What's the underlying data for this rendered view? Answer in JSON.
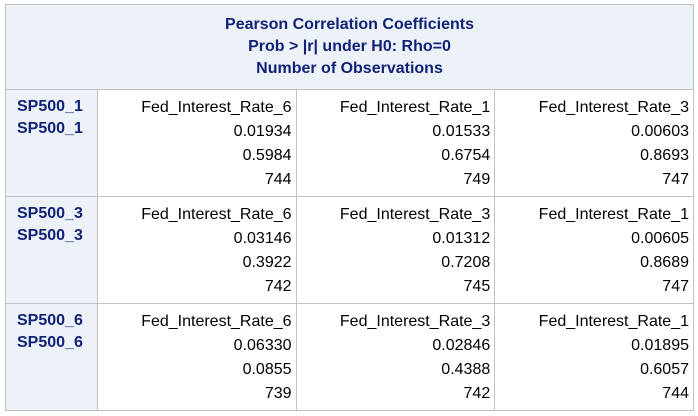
{
  "header": {
    "line1": "Pearson Correlation Coefficients",
    "line2": "Prob > |r| under H0: Rho=0",
    "line3": "Number of Observations"
  },
  "rows": [
    {
      "label1": "SP500_1",
      "label2": "SP500_1",
      "cells": [
        {
          "name": "Fed_Interest_Rate_6",
          "corr": "0.01934",
          "p": "0.5984",
          "n": "744"
        },
        {
          "name": "Fed_Interest_Rate_1",
          "corr": "0.01533",
          "p": "0.6754",
          "n": "749"
        },
        {
          "name": "Fed_Interest_Rate_3",
          "corr": "0.00603",
          "p": "0.8693",
          "n": "747"
        }
      ]
    },
    {
      "label1": "SP500_3",
      "label2": "SP500_3",
      "cells": [
        {
          "name": "Fed_Interest_Rate_6",
          "corr": "0.03146",
          "p": "0.3922",
          "n": "742"
        },
        {
          "name": "Fed_Interest_Rate_3",
          "corr": "0.01312",
          "p": "0.7208",
          "n": "745"
        },
        {
          "name": "Fed_Interest_Rate_1",
          "corr": "0.00605",
          "p": "0.8689",
          "n": "747"
        }
      ]
    },
    {
      "label1": "SP500_6",
      "label2": "SP500_6",
      "cells": [
        {
          "name": "Fed_Interest_Rate_6",
          "corr": "0.06330",
          "p": "0.0855",
          "n": "739"
        },
        {
          "name": "Fed_Interest_Rate_3",
          "corr": "0.02846",
          "p": "0.4388",
          "n": "742"
        },
        {
          "name": "Fed_Interest_Rate_1",
          "corr": "0.01895",
          "p": "0.6057",
          "n": "744"
        }
      ]
    }
  ]
}
